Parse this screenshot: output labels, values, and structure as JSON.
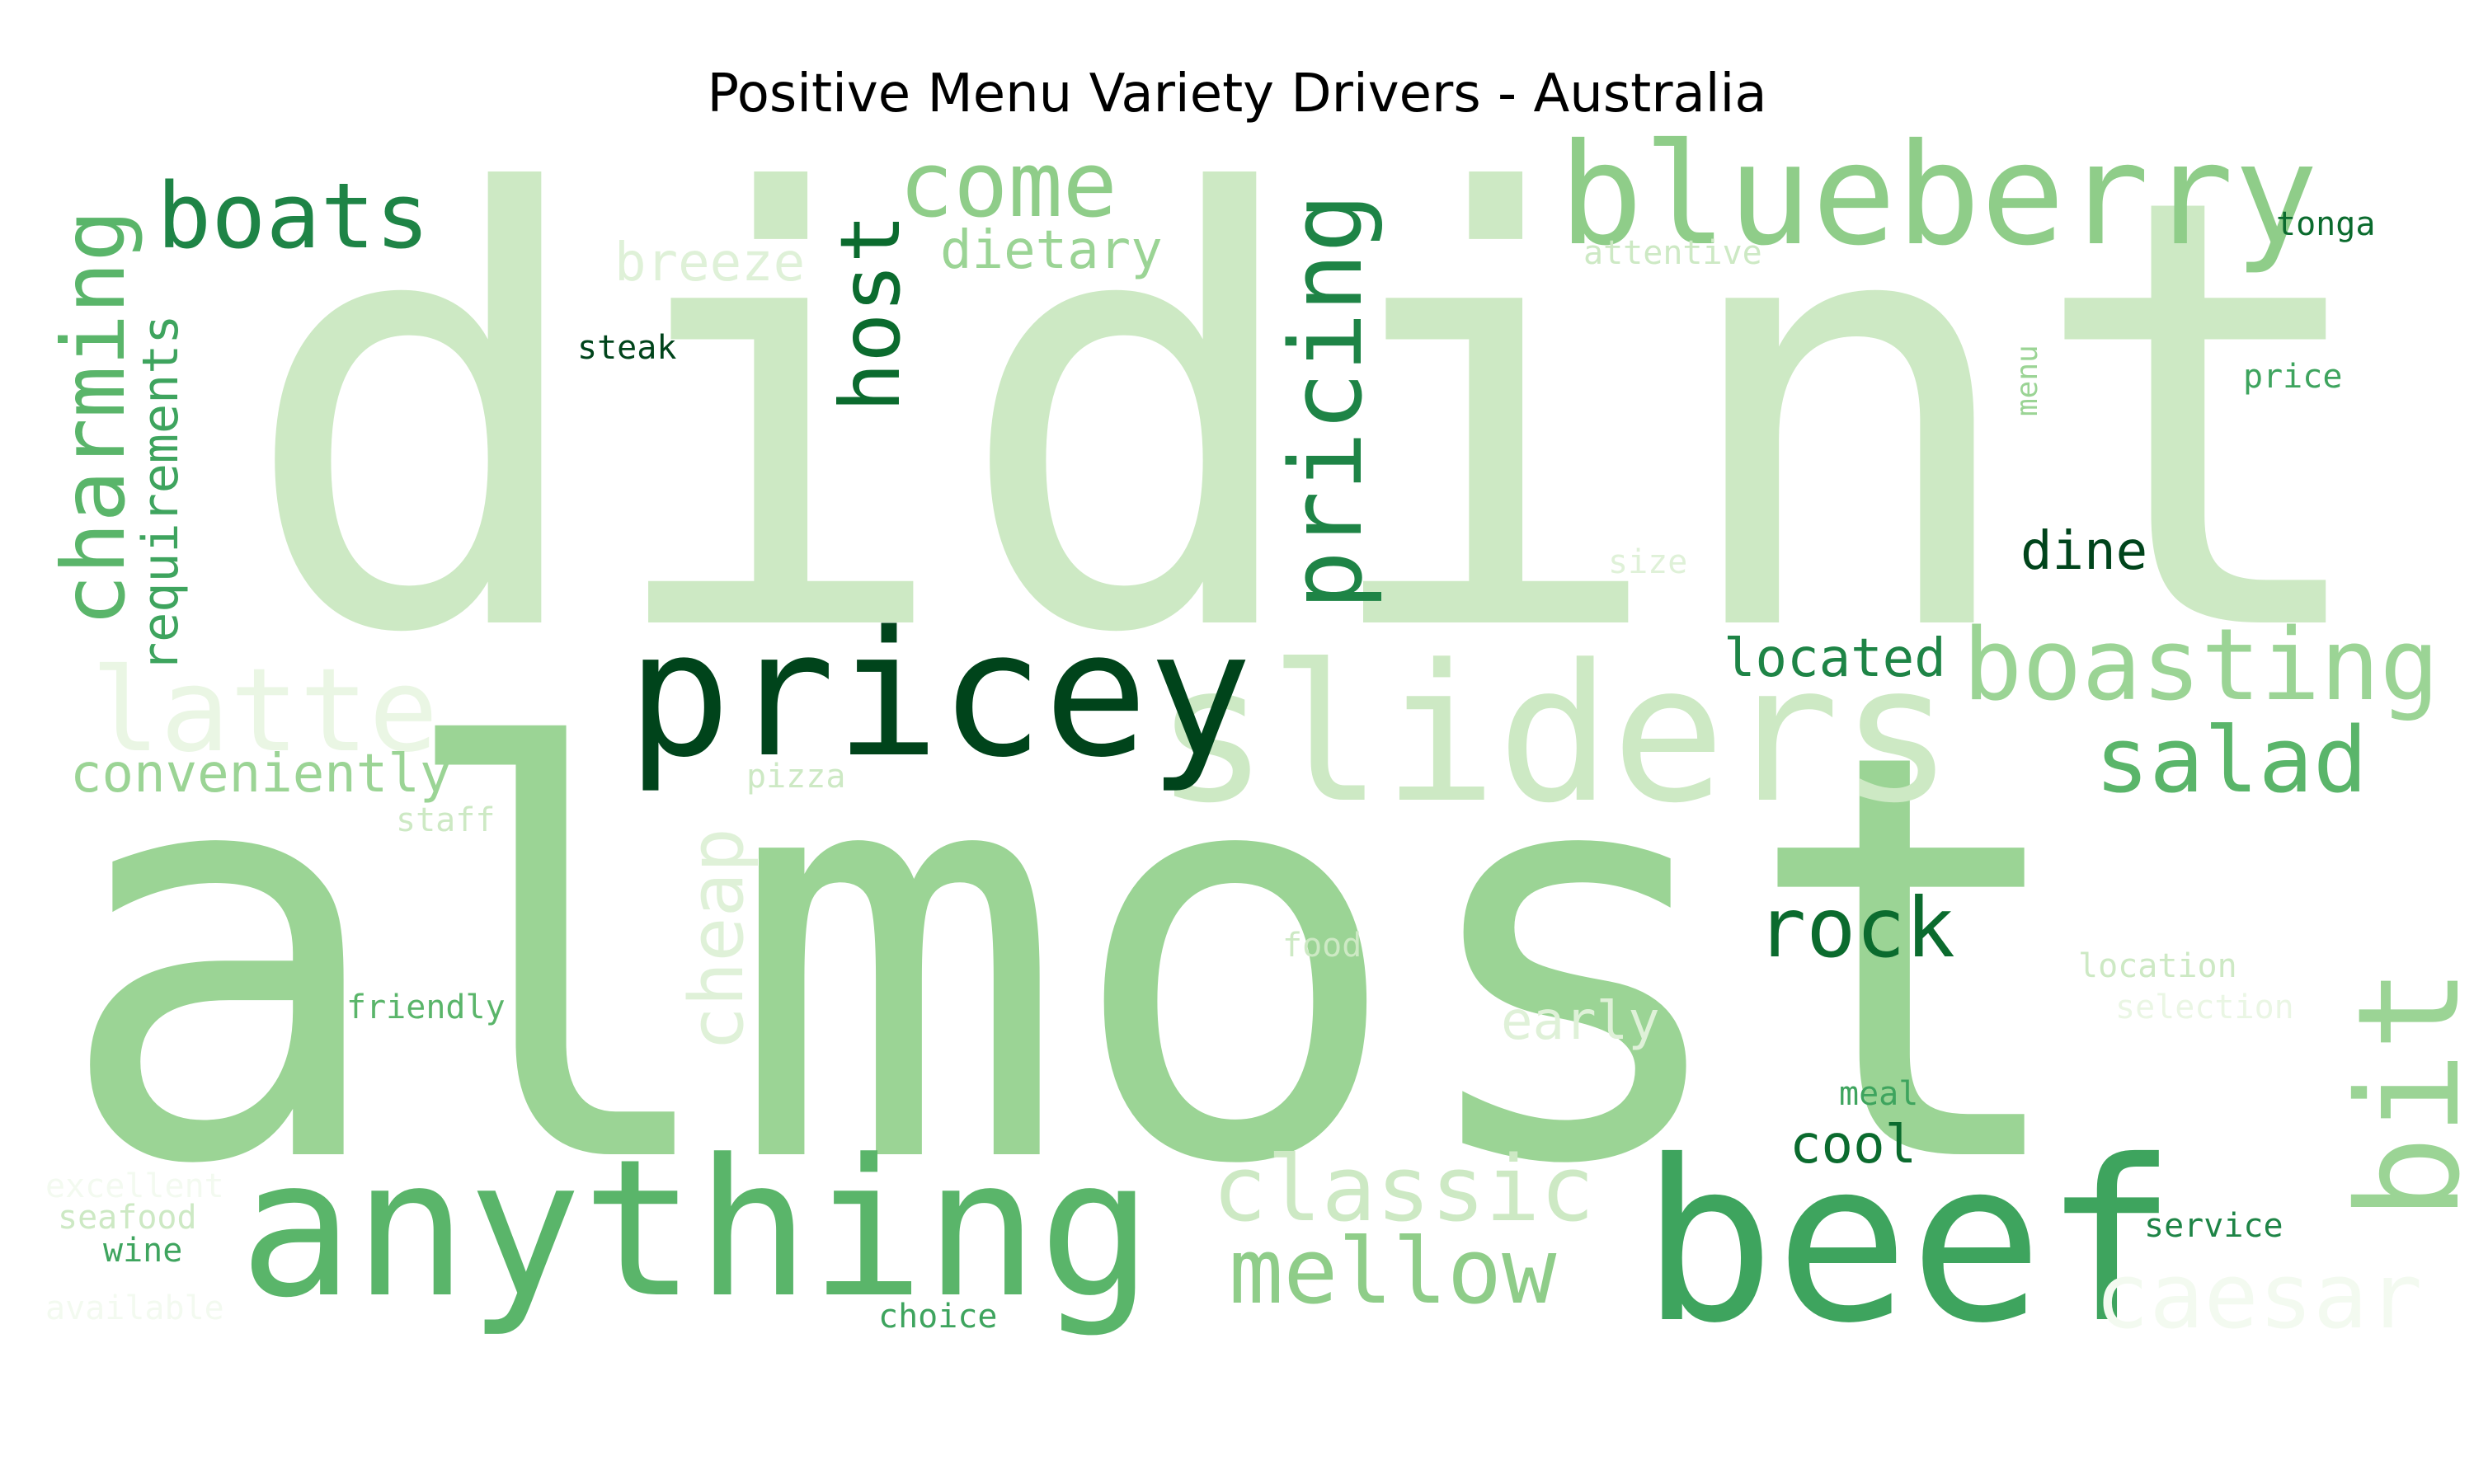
{
  "title": "Positive Menu Variety Drivers - Australia",
  "palette": {
    "darkest": "#00441b",
    "dark": "#0b6b2e",
    "mid_dark": "#1e8446",
    "mid": "#3ea45e",
    "mid_light": "#5ab56a",
    "light": "#8fcd89",
    "lighter": "#9bd495",
    "pale": "#cde9c4",
    "paler": "#dff1d8",
    "palest": "#eaf6e4",
    "faint": "#f3faf0"
  },
  "words": [
    {
      "text": "didint",
      "rotated": false,
      "color": "#cde9c4"
    },
    {
      "text": "almost",
      "rotated": false,
      "color": "#9bd495"
    },
    {
      "text": "sliders",
      "rotated": false,
      "color": "#cde9c4"
    },
    {
      "text": "anything",
      "rotated": false,
      "color": "#5ab56a"
    },
    {
      "text": "beef",
      "rotated": false,
      "color": "#3ea45e"
    },
    {
      "text": "pricey",
      "rotated": false,
      "color": "#00441b"
    },
    {
      "text": "blueberry",
      "rotated": false,
      "color": "#8fcd89"
    },
    {
      "text": "boats",
      "rotated": false,
      "color": "#1e8446"
    },
    {
      "text": "come",
      "rotated": false,
      "color": "#8fcd89"
    },
    {
      "text": "latte",
      "rotated": false,
      "color": "#eaf6e4"
    },
    {
      "text": "boasting",
      "rotated": false,
      "color": "#9bd495"
    },
    {
      "text": "salad",
      "rotated": false,
      "color": "#5ab56a"
    },
    {
      "text": "rock",
      "rotated": false,
      "color": "#0b6b2e"
    },
    {
      "text": "classic",
      "rotated": false,
      "color": "#cde9c4"
    },
    {
      "text": "mellow",
      "rotated": false,
      "color": "#8fcd89"
    },
    {
      "text": "caesar",
      "rotated": false,
      "color": "#f3faf0"
    },
    {
      "text": "host",
      "rotated": true,
      "color": "#0b6b2e"
    },
    {
      "text": "pricing",
      "rotated": true,
      "color": "#1e8446"
    },
    {
      "text": "charming",
      "rotated": true,
      "color": "#5ab56a"
    },
    {
      "text": "requirements",
      "rotated": true,
      "color": "#3ea45e"
    },
    {
      "text": "cheap",
      "rotated": true,
      "color": "#dff1d8"
    },
    {
      "text": "bit",
      "rotated": true,
      "color": "#9bd495"
    },
    {
      "text": "menu",
      "rotated": true,
      "color": "#9bd495"
    },
    {
      "text": "dietary",
      "rotated": false,
      "color": "#9bd495"
    },
    {
      "text": "breeze",
      "rotated": false,
      "color": "#dff1d8"
    },
    {
      "text": "located",
      "rotated": false,
      "color": "#1e8446"
    },
    {
      "text": "dine",
      "rotated": false,
      "color": "#00441b"
    },
    {
      "text": "conveniently",
      "rotated": false,
      "color": "#9bd495"
    },
    {
      "text": "early",
      "rotated": false,
      "color": "#dff1d8"
    },
    {
      "text": "cool",
      "rotated": false,
      "color": "#0b6b2e"
    },
    {
      "text": "attentive",
      "rotated": false,
      "color": "#cde9c4"
    },
    {
      "text": "tonga",
      "rotated": false,
      "color": "#0b6b2e"
    },
    {
      "text": "steak",
      "rotated": false,
      "color": "#00441b"
    },
    {
      "text": "price",
      "rotated": false,
      "color": "#3ea45e"
    },
    {
      "text": "size",
      "rotated": false,
      "color": "#dff1d8"
    },
    {
      "text": "pizza",
      "rotated": false,
      "color": "#cde9c4"
    },
    {
      "text": "staff",
      "rotated": false,
      "color": "#cde9c4"
    },
    {
      "text": "food",
      "rotated": false,
      "color": "#cde9c4"
    },
    {
      "text": "friendly",
      "rotated": false,
      "color": "#5ab56a"
    },
    {
      "text": "location",
      "rotated": false,
      "color": "#cde9c4"
    },
    {
      "text": "selection",
      "rotated": false,
      "color": "#eaf6e4"
    },
    {
      "text": "meal",
      "rotated": false,
      "color": "#3ea45e"
    },
    {
      "text": "service",
      "rotated": false,
      "color": "#1e8446"
    },
    {
      "text": "choice",
      "rotated": false,
      "color": "#3ea45e"
    },
    {
      "text": "excellent",
      "rotated": false,
      "color": "#f3faf0"
    },
    {
      "text": "seafood",
      "rotated": false,
      "color": "#cde9c4"
    },
    {
      "text": "wine",
      "rotated": false,
      "color": "#3ea45e"
    },
    {
      "text": "available",
      "rotated": false,
      "color": "#f3faf0"
    }
  ]
}
